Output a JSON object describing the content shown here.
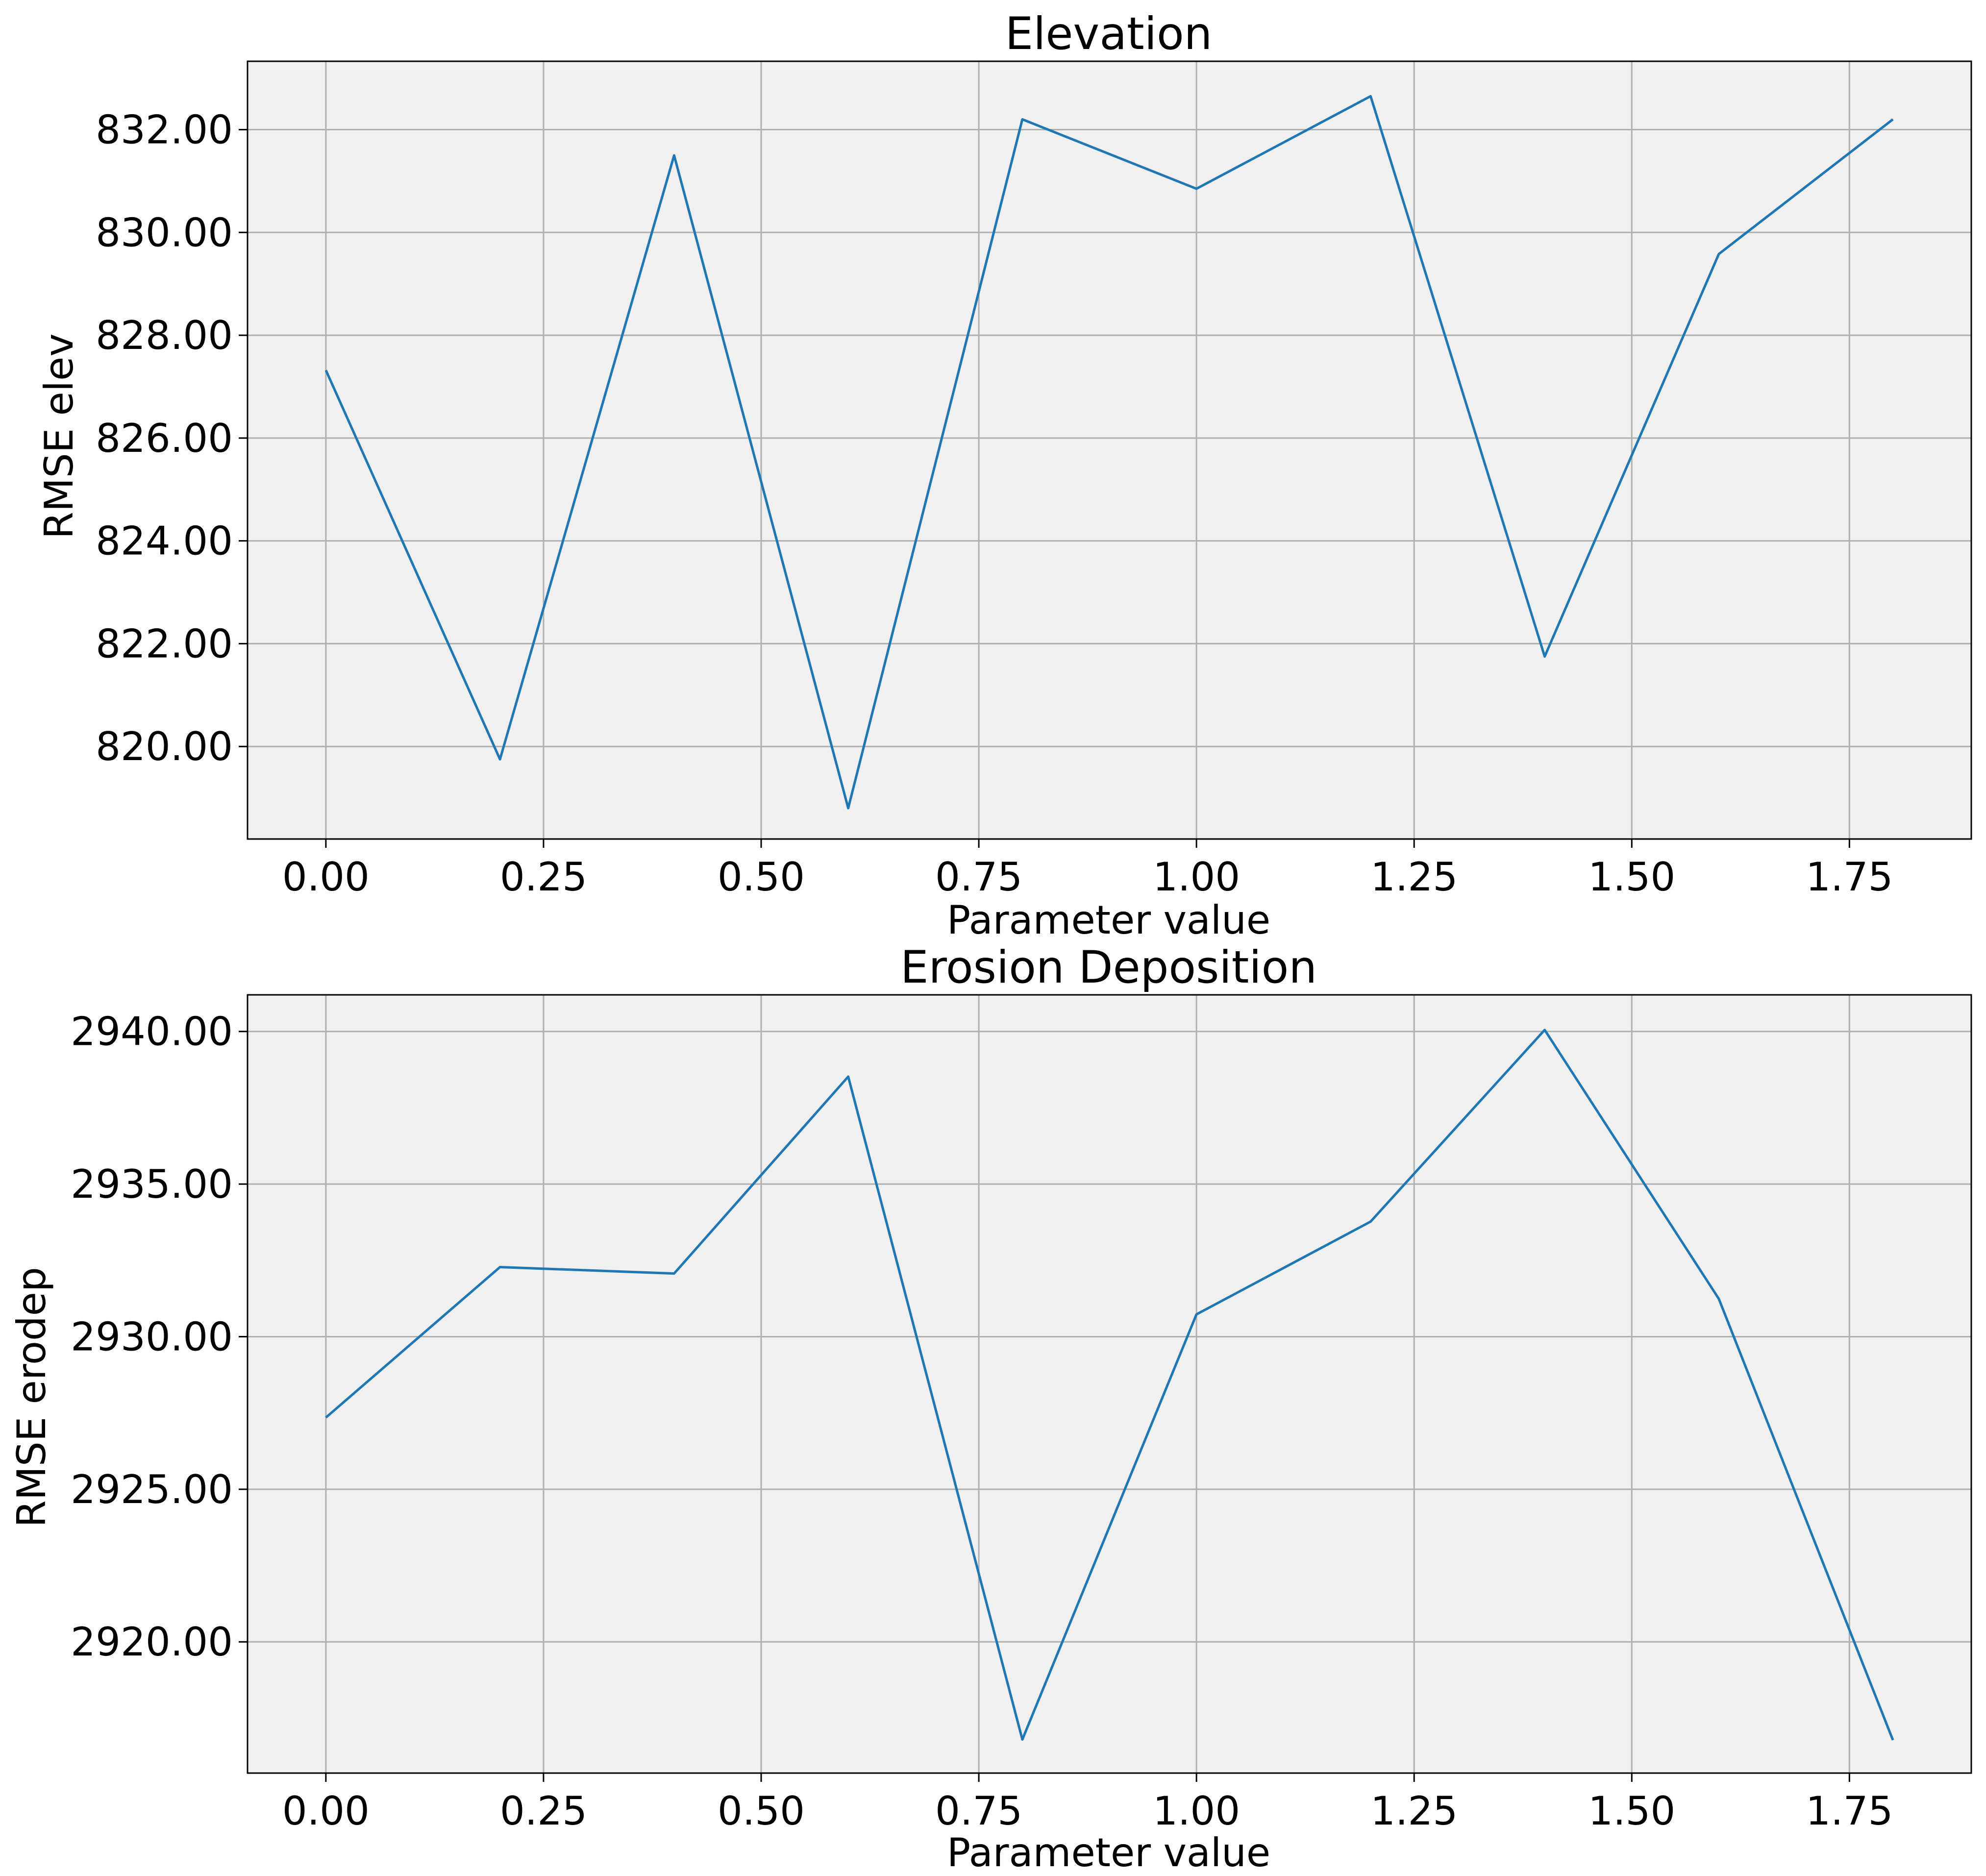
{
  "chart_data": [
    {
      "type": "line",
      "title": "Elevation",
      "xlabel": "Parameter value",
      "ylabel": "RMSE elev",
      "x": [
        0.0,
        0.2,
        0.4,
        0.6,
        0.8,
        1.0,
        1.2,
        1.4,
        1.6,
        1.8
      ],
      "series": [
        {
          "values": [
            827.32,
            819.75,
            831.5,
            818.8,
            832.2,
            830.85,
            832.65,
            821.75,
            829.58,
            832.2
          ]
        }
      ],
      "xlim": [
        -0.09,
        1.89
      ],
      "ylim": [
        818.2,
        833.33
      ],
      "xticks": [
        0.0,
        0.25,
        0.5,
        0.75,
        1.0,
        1.25,
        1.5,
        1.75
      ],
      "xtick_labels": [
        "0.00",
        "0.25",
        "0.50",
        "0.75",
        "1.00",
        "1.25",
        "1.50",
        "1.75"
      ],
      "yticks": [
        820,
        822,
        824,
        826,
        828,
        830,
        832
      ],
      "ytick_labels": [
        "820.00",
        "822.00",
        "824.00",
        "826.00",
        "828.00",
        "830.00",
        "832.00"
      ],
      "grid": true,
      "color": "#1f77b4"
    },
    {
      "type": "line",
      "title": "Erosion Deposition",
      "xlabel": "Parameter value",
      "ylabel": "RMSE erodep",
      "x": [
        0.0,
        0.2,
        0.4,
        0.6,
        0.8,
        1.0,
        1.2,
        1.4,
        1.6,
        1.8
      ],
      "series": [
        {
          "values": [
            2927.35,
            2932.28,
            2932.07,
            2938.52,
            2916.8,
            2930.73,
            2933.77,
            2940.05,
            2931.24,
            2916.78
          ]
        }
      ],
      "xlim": [
        -0.09,
        1.89
      ],
      "ylim": [
        2915.7,
        2941.2
      ],
      "xticks": [
        0.0,
        0.25,
        0.5,
        0.75,
        1.0,
        1.25,
        1.5,
        1.75
      ],
      "xtick_labels": [
        "0.00",
        "0.25",
        "0.50",
        "0.75",
        "1.00",
        "1.25",
        "1.50",
        "1.75"
      ],
      "yticks": [
        2920,
        2925,
        2930,
        2935,
        2940
      ],
      "ytick_labels": [
        "2920.00",
        "2925.00",
        "2930.00",
        "2935.00",
        "2940.00"
      ],
      "grid": true,
      "color": "#1f77b4"
    }
  ]
}
